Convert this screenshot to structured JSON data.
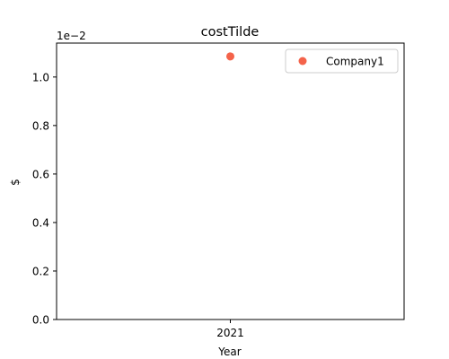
{
  "chart_data": {
    "type": "scatter",
    "title": "costTilde",
    "xlabel": "Year",
    "ylabel": "$",
    "offset_text": "1e−2",
    "x_ticks": [
      "2021"
    ],
    "y_ticks": [
      "0.0",
      "0.2",
      "0.4",
      "0.6",
      "0.8",
      "1.0"
    ],
    "y_tick_values": [
      0.0,
      0.2,
      0.4,
      0.6,
      0.8,
      1.0
    ],
    "ylim": [
      0.0,
      1.14
    ],
    "y_scale_multiplier": 0.01,
    "legend_position": "upper right",
    "grid": false,
    "series": [
      {
        "name": "Company1",
        "color": "#f4634a",
        "points": [
          {
            "x": "2021",
            "y": 1.085
          }
        ]
      }
    ]
  }
}
